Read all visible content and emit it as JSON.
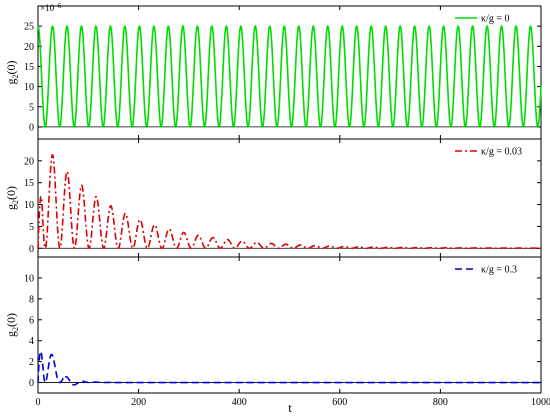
{
  "chart_data": {
    "type": "line",
    "xlabel": "t",
    "xlim": [
      0,
      1000
    ],
    "x_ticks": [
      0,
      200,
      400,
      600,
      800,
      1000
    ],
    "panels": [
      {
        "ylabel_main": "g",
        "ylabel_sub": "2",
        "ylabel_tail": "(0)",
        "multiplier_base": "×10",
        "multiplier_exp": "−6",
        "ylim": [
          -3,
          30
        ],
        "y_ticks": [
          0,
          5,
          10,
          15,
          20,
          25
        ],
        "legend_label": "κ/g = 0",
        "legend_position": "top-right",
        "series": [
          {
            "label": "κ/g = 0",
            "color": "#00dd00",
            "style": "solid",
            "model": {
              "form": "cos_squared",
              "amplitude": 25,
              "period": 28.8,
              "decay": 0
            }
          }
        ]
      },
      {
        "ylabel_main": "g",
        "ylabel_sub": "2",
        "ylabel_tail": "(0)",
        "ylim": [
          -2,
          25
        ],
        "y_ticks": [
          0,
          5,
          10,
          15,
          20
        ],
        "legend_label": "κ/g = 0.03",
        "legend_position": "top-right",
        "series": [
          {
            "label": "κ/g = 0.03",
            "color": "#dd0000",
            "style": "dashdot",
            "model": {
              "form": "decaying_cos_squared",
              "amplitude": 26,
              "period": 29,
              "decay": 0.0068
            }
          }
        ]
      },
      {
        "ylabel_main": "g",
        "ylabel_sub": "2",
        "ylabel_tail": "(0)",
        "ylim": [
          -1,
          12
        ],
        "y_ticks": [
          0,
          2,
          4,
          6,
          8,
          10
        ],
        "legend_label": "κ/g = 0.3",
        "legend_position": "top-right",
        "series": [
          {
            "label": "κ/g = 0.3",
            "color": "#0000dd",
            "style": "dashed",
            "model": {
              "form": "damped_spike",
              "amplitude": 10.3,
              "period": 29,
              "decay": 0.048
            }
          }
        ]
      }
    ]
  }
}
